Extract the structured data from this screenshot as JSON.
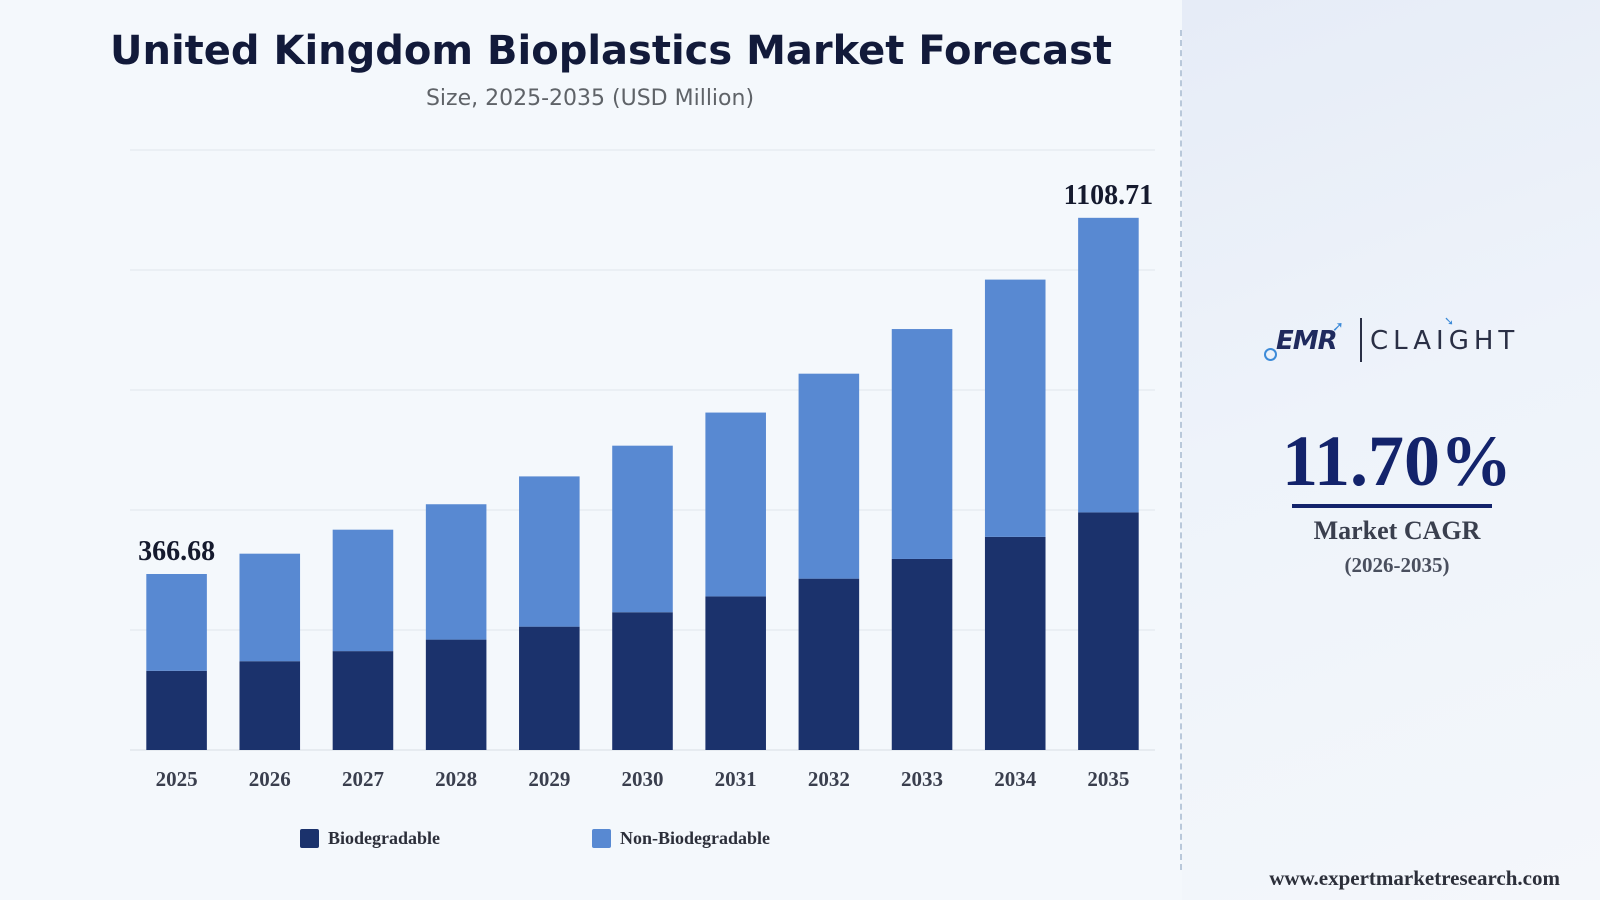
{
  "header": {
    "title": "United Kingdom Bioplastics Market Forecast",
    "subtitle": "Size, 2025-2035 (USD Million)"
  },
  "chart_data": {
    "type": "bar",
    "stacked": true,
    "categories": [
      "2025",
      "2026",
      "2027",
      "2028",
      "2029",
      "2030",
      "2031",
      "2032",
      "2033",
      "2034",
      "2035"
    ],
    "series": [
      {
        "name": "Biodegradable",
        "color": "#1b326c",
        "values": [
          165,
          185,
          206,
          230,
          257,
          287,
          320,
          357,
          398,
          444,
          495
        ]
      },
      {
        "name": "Non-Biodegradable",
        "color": "#5889d2",
        "values": [
          201.68,
          224,
          253,
          282,
          313,
          347,
          383,
          427,
          479,
          536,
          613.71
        ]
      }
    ],
    "totals_labels": {
      "2025": "366.68",
      "2035": "1108.71"
    },
    "ylim": [
      0,
      1250
    ],
    "y_gridlines": [
      0,
      250,
      500,
      750,
      1000,
      1250
    ],
    "grid": true,
    "legend": "bottom"
  },
  "cagr": {
    "value": "11.70%",
    "label": "Market CAGR",
    "period": "(2026-2035)"
  },
  "brand": {
    "logo_left": "EMR",
    "logo_right": "CLAIGHT",
    "logo_colors": {
      "navy": "#1f2a5e",
      "accent": "#3d8bd8"
    }
  },
  "footer": {
    "website": "www.expertmarketresearch.com"
  }
}
